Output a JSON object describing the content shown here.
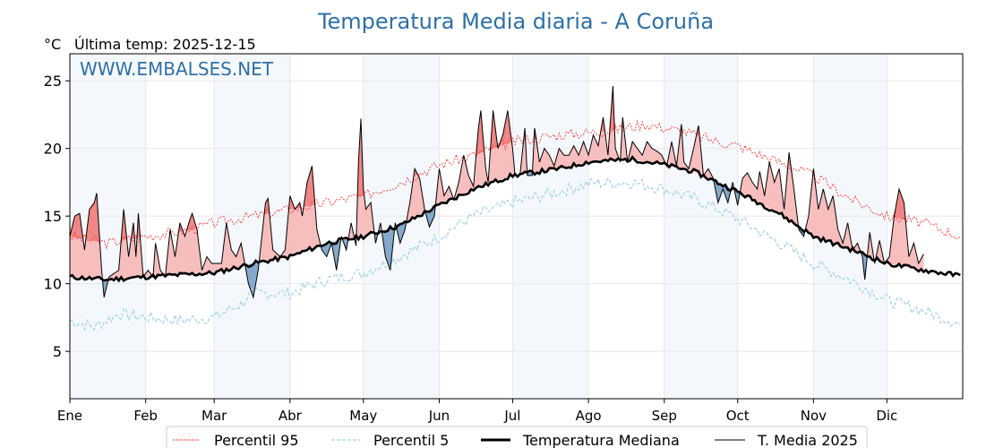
{
  "chart_data": {
    "type": "line",
    "title": "Temperatura Media diaria - A Coruña",
    "unit_label": "°C",
    "subtitle": "Última temp: 2025-12-15",
    "watermark": "WWW.EMBALSES.NET",
    "ylim": [
      1.5,
      27
    ],
    "yticks": [
      5,
      10,
      15,
      20,
      25
    ],
    "xlim_days": [
      0,
      364
    ],
    "months": [
      {
        "label": "Ene",
        "day": 0
      },
      {
        "label": "Feb",
        "day": 31
      },
      {
        "label": "Mar",
        "day": 59
      },
      {
        "label": "Abr",
        "day": 90
      },
      {
        "label": "May",
        "day": 120
      },
      {
        "label": "Jun",
        "day": 151
      },
      {
        "label": "Jul",
        "day": 181
      },
      {
        "label": "Ago",
        "day": 212
      },
      {
        "label": "Sep",
        "day": 243
      },
      {
        "label": "Oct",
        "day": 273
      },
      {
        "label": "Nov",
        "day": 304
      },
      {
        "label": "Dic",
        "day": 334
      }
    ],
    "grid": true,
    "legend": {
      "placement": "bottom-center",
      "entries": [
        "Percentil 95",
        "Percentil 5",
        "Temperatura Mediana",
        "T. Media 2025"
      ]
    },
    "colors": {
      "title": "#2e6fa8",
      "p95": "#ff3333",
      "p5": "#a8d4e6",
      "median": "#000000",
      "t2025": "#000000",
      "above": "#f7bebe",
      "above_p95": "#f08282",
      "below": "#85a9cc",
      "band": "#f4f8fc"
    },
    "series": {
      "p95": [
        [
          0,
          13.5
        ],
        [
          15,
          13
        ],
        [
          31,
          13.5
        ],
        [
          50,
          14
        ],
        [
          59,
          14.5
        ],
        [
          75,
          15
        ],
        [
          90,
          15.5
        ],
        [
          105,
          16
        ],
        [
          120,
          16.5
        ],
        [
          135,
          17.5
        ],
        [
          151,
          18.8
        ],
        [
          165,
          19.5
        ],
        [
          181,
          20.5
        ],
        [
          200,
          21
        ],
        [
          220,
          21.3
        ],
        [
          235,
          21.8
        ],
        [
          250,
          21.3
        ],
        [
          265,
          20.5
        ],
        [
          273,
          20.2
        ],
        [
          290,
          19
        ],
        [
          304,
          18
        ],
        [
          320,
          16.2
        ],
        [
          334,
          15
        ],
        [
          349,
          14.5
        ],
        [
          364,
          13.5
        ]
      ],
      "p5": [
        [
          0,
          7.3
        ],
        [
          10,
          6.8
        ],
        [
          20,
          7.8
        ],
        [
          31,
          7.5
        ],
        [
          45,
          7.3
        ],
        [
          59,
          7.5
        ],
        [
          70,
          8.5
        ],
        [
          75,
          9.3
        ],
        [
          90,
          9.3
        ],
        [
          105,
          10.3
        ],
        [
          120,
          10.8
        ],
        [
          135,
          12
        ],
        [
          151,
          13.5
        ],
        [
          165,
          15
        ],
        [
          181,
          16
        ],
        [
          200,
          16.8
        ],
        [
          212,
          17.4
        ],
        [
          230,
          17.5
        ],
        [
          243,
          17
        ],
        [
          255,
          16.3
        ],
        [
          265,
          15.5
        ],
        [
          273,
          14.8
        ],
        [
          290,
          13
        ],
        [
          304,
          11.5
        ],
        [
          320,
          10.2
        ],
        [
          334,
          8.8
        ],
        [
          349,
          8
        ],
        [
          364,
          7
        ]
      ],
      "median": [
        [
          0,
          10.5
        ],
        [
          15,
          10.3
        ],
        [
          30,
          10.5
        ],
        [
          59,
          10.8
        ],
        [
          75,
          11.5
        ],
        [
          90,
          12
        ],
        [
          105,
          13
        ],
        [
          120,
          13.5
        ],
        [
          135,
          14.3
        ],
        [
          151,
          15.8
        ],
        [
          165,
          17
        ],
        [
          181,
          18
        ],
        [
          200,
          18.5
        ],
        [
          212,
          19
        ],
        [
          230,
          19.2
        ],
        [
          243,
          18.8
        ],
        [
          255,
          18.3
        ],
        [
          273,
          16.8
        ],
        [
          290,
          15.2
        ],
        [
          304,
          13.5
        ],
        [
          320,
          12.5
        ],
        [
          334,
          11.5
        ],
        [
          349,
          11
        ],
        [
          364,
          10.6
        ]
      ],
      "t2025": [
        [
          0,
          13.5
        ],
        [
          2,
          15
        ],
        [
          4,
          15.2
        ],
        [
          6,
          12.5
        ],
        [
          8,
          15.5
        ],
        [
          10,
          16
        ],
        [
          11,
          16.7
        ],
        [
          13,
          11
        ],
        [
          14,
          9
        ],
        [
          16,
          10.5
        ],
        [
          20,
          11
        ],
        [
          22,
          15.5
        ],
        [
          24,
          12
        ],
        [
          26,
          14.5
        ],
        [
          27,
          12
        ],
        [
          28,
          15.2
        ],
        [
          30,
          10.5
        ],
        [
          32,
          11
        ],
        [
          34,
          10.5
        ],
        [
          35,
          13
        ],
        [
          37,
          11
        ],
        [
          39,
          10.5
        ],
        [
          41,
          14
        ],
        [
          43,
          12
        ],
        [
          45,
          14.5
        ],
        [
          47,
          13.5
        ],
        [
          49,
          14.7
        ],
        [
          50,
          15.2
        ],
        [
          52,
          14
        ],
        [
          54,
          11
        ],
        [
          56,
          12
        ],
        [
          58,
          11.5
        ],
        [
          62,
          11.5
        ],
        [
          64,
          14.5
        ],
        [
          66,
          12.5
        ],
        [
          68,
          12
        ],
        [
          70,
          13
        ],
        [
          73,
          10
        ],
        [
          75,
          9
        ],
        [
          77,
          11
        ],
        [
          80,
          16
        ],
        [
          81,
          16.3
        ],
        [
          83,
          12.5
        ],
        [
          86,
          12
        ],
        [
          88,
          12.5
        ],
        [
          90,
          16.5
        ],
        [
          92,
          15.5
        ],
        [
          94,
          16
        ],
        [
          95,
          15
        ],
        [
          97,
          17.5
        ],
        [
          99,
          18.7
        ],
        [
          101,
          14
        ],
        [
          103,
          12.5
        ],
        [
          105,
          12
        ],
        [
          107,
          13
        ],
        [
          109,
          11
        ],
        [
          111,
          13.5
        ],
        [
          113,
          12.5
        ],
        [
          115,
          14.5
        ],
        [
          117,
          12.8
        ],
        [
          118,
          19
        ],
        [
          119,
          22.2
        ],
        [
          120,
          17
        ],
        [
          121,
          15.5
        ],
        [
          123,
          16
        ],
        [
          125,
          13
        ],
        [
          127,
          14.5
        ],
        [
          129,
          12
        ],
        [
          131,
          11
        ],
        [
          133,
          14.5
        ],
        [
          135,
          13
        ],
        [
          137,
          14
        ],
        [
          139,
          16
        ],
        [
          141,
          18.5
        ],
        [
          143,
          17.8
        ],
        [
          145,
          15.5
        ],
        [
          147,
          14.2
        ],
        [
          149,
          15
        ],
        [
          151,
          18.5
        ],
        [
          153,
          16.5
        ],
        [
          155,
          17.2
        ],
        [
          157,
          16.2
        ],
        [
          159,
          17.5
        ],
        [
          161,
          19.5
        ],
        [
          163,
          18
        ],
        [
          165,
          17.2
        ],
        [
          167,
          21.5
        ],
        [
          168,
          22.8
        ],
        [
          170,
          18.5
        ],
        [
          171,
          17.5
        ],
        [
          173,
          22.8
        ],
        [
          175,
          20
        ],
        [
          177,
          21
        ],
        [
          179,
          22.8
        ],
        [
          181,
          20
        ],
        [
          182,
          18
        ],
        [
          184,
          18
        ],
        [
          186,
          21.5
        ],
        [
          187,
          18
        ],
        [
          189,
          18
        ],
        [
          190,
          21.5
        ],
        [
          192,
          19
        ],
        [
          194,
          20
        ],
        [
          196,
          19.5
        ],
        [
          198,
          18.7
        ],
        [
          200,
          20
        ],
        [
          202,
          19.5
        ],
        [
          204,
          19.5
        ],
        [
          206,
          20.2
        ],
        [
          208,
          19.5
        ],
        [
          210,
          20.5
        ],
        [
          212,
          19.5
        ],
        [
          214,
          21
        ],
        [
          216,
          20.2
        ],
        [
          218,
          22.3
        ],
        [
          220,
          19.5
        ],
        [
          222,
          24.6
        ],
        [
          223,
          20
        ],
        [
          225,
          19
        ],
        [
          226,
          22.3
        ],
        [
          228,
          19
        ],
        [
          230,
          20.5
        ],
        [
          232,
          20
        ],
        [
          234,
          19.5
        ],
        [
          236,
          20.5
        ],
        [
          238,
          20
        ],
        [
          240,
          19.8
        ],
        [
          242,
          19.5
        ],
        [
          244,
          18.7
        ],
        [
          246,
          20.5
        ],
        [
          248,
          18.7
        ],
        [
          250,
          21.8
        ],
        [
          251,
          19
        ],
        [
          253,
          18.5
        ],
        [
          255,
          20
        ],
        [
          257,
          21.7
        ],
        [
          259,
          18
        ],
        [
          261,
          18.5
        ],
        [
          263,
          17.8
        ],
        [
          265,
          16
        ],
        [
          267,
          17
        ],
        [
          269,
          16
        ],
        [
          271,
          17.5
        ],
        [
          273,
          15.8
        ],
        [
          275,
          17.8
        ],
        [
          277,
          18.2
        ],
        [
          279,
          17.5
        ],
        [
          281,
          17
        ],
        [
          282,
          18.3
        ],
        [
          284,
          16.5
        ],
        [
          286,
          19
        ],
        [
          288,
          17.5
        ],
        [
          290,
          18.5
        ],
        [
          292,
          15.5
        ],
        [
          294,
          19.7
        ],
        [
          296,
          17
        ],
        [
          298,
          14
        ],
        [
          300,
          13.5
        ],
        [
          302,
          15
        ],
        [
          304,
          18.5
        ],
        [
          306,
          15.5
        ],
        [
          308,
          17
        ],
        [
          310,
          15.5
        ],
        [
          312,
          16.5
        ],
        [
          314,
          14
        ],
        [
          316,
          13
        ],
        [
          318,
          14.5
        ],
        [
          320,
          12.5
        ],
        [
          322,
          13
        ],
        [
          324,
          12
        ],
        [
          325,
          10.3
        ],
        [
          327,
          13.8
        ],
        [
          329,
          11.5
        ],
        [
          331,
          13.2
        ],
        [
          333,
          11.5
        ],
        [
          335,
          12
        ],
        [
          337,
          15
        ],
        [
          339,
          17
        ],
        [
          341,
          16
        ],
        [
          343,
          12
        ],
        [
          345,
          13
        ],
        [
          347,
          11.5
        ],
        [
          349,
          12.2
        ]
      ]
    }
  }
}
